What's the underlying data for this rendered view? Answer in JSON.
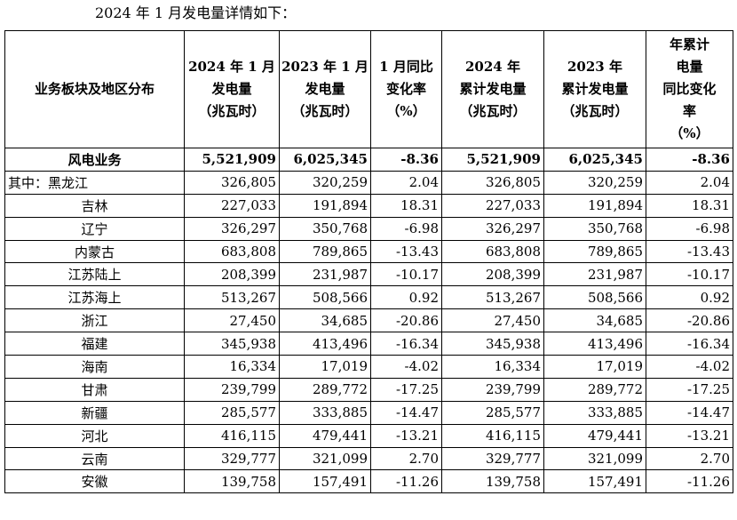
{
  "intro": "2024 年 1 月发电量详情如下：",
  "table": {
    "headers": [
      [
        "业务板块及地区分布"
      ],
      [
        "2024 年 1 月",
        "发电量",
        "（兆瓦时）"
      ],
      [
        "2023 年 1 月",
        "发电量",
        "（兆瓦时）"
      ],
      [
        "1 月同比",
        "变化率",
        "（%）"
      ],
      [
        "2024 年",
        "累计发电量",
        "（兆瓦时）"
      ],
      [
        "2023 年",
        "累计发电量",
        "（兆瓦时）"
      ],
      [
        "年累计",
        "电量",
        "同比变化",
        "率",
        "（%）"
      ]
    ],
    "total": {
      "name": "风电业务",
      "jan2024": "5,521,909",
      "jan2023": "6,025,345",
      "jan_yoy": "-8.36",
      "cum2024": "5,521,909",
      "cum2023": "6,025,345",
      "cum_yoy": "-8.36"
    },
    "rows": [
      {
        "name": "其中：黑龙江",
        "jan2024": "326,805",
        "jan2023": "320,259",
        "jan_yoy": "2.04",
        "cum2024": "326,805",
        "cum2023": "320,259",
        "cum_yoy": "2.04"
      },
      {
        "name": "吉林",
        "jan2024": "227,033",
        "jan2023": "191,894",
        "jan_yoy": "18.31",
        "cum2024": "227,033",
        "cum2023": "191,894",
        "cum_yoy": "18.31"
      },
      {
        "name": "辽宁",
        "jan2024": "326,297",
        "jan2023": "350,768",
        "jan_yoy": "-6.98",
        "cum2024": "326,297",
        "cum2023": "350,768",
        "cum_yoy": "-6.98"
      },
      {
        "name": "内蒙古",
        "jan2024": "683,808",
        "jan2023": "789,865",
        "jan_yoy": "-13.43",
        "cum2024": "683,808",
        "cum2023": "789,865",
        "cum_yoy": "-13.43"
      },
      {
        "name": "江苏陆上",
        "jan2024": "208,399",
        "jan2023": "231,987",
        "jan_yoy": "-10.17",
        "cum2024": "208,399",
        "cum2023": "231,987",
        "cum_yoy": "-10.17"
      },
      {
        "name": "江苏海上",
        "jan2024": "513,267",
        "jan2023": "508,566",
        "jan_yoy": "0.92",
        "cum2024": "513,267",
        "cum2023": "508,566",
        "cum_yoy": "0.92"
      },
      {
        "name": "浙江",
        "jan2024": "27,450",
        "jan2023": "34,685",
        "jan_yoy": "-20.86",
        "cum2024": "27,450",
        "cum2023": "34,685",
        "cum_yoy": "-20.86"
      },
      {
        "name": "福建",
        "jan2024": "345,938",
        "jan2023": "413,496",
        "jan_yoy": "-16.34",
        "cum2024": "345,938",
        "cum2023": "413,496",
        "cum_yoy": "-16.34"
      },
      {
        "name": "海南",
        "jan2024": "16,334",
        "jan2023": "17,019",
        "jan_yoy": "-4.02",
        "cum2024": "16,334",
        "cum2023": "17,019",
        "cum_yoy": "-4.02"
      },
      {
        "name": "甘肃",
        "jan2024": "239,799",
        "jan2023": "289,772",
        "jan_yoy": "-17.25",
        "cum2024": "239,799",
        "cum2023": "289,772",
        "cum_yoy": "-17.25"
      },
      {
        "name": "新疆",
        "jan2024": "285,577",
        "jan2023": "333,885",
        "jan_yoy": "-14.47",
        "cum2024": "285,577",
        "cum2023": "333,885",
        "cum_yoy": "-14.47"
      },
      {
        "name": "河北",
        "jan2024": "416,115",
        "jan2023": "479,441",
        "jan_yoy": "-13.21",
        "cum2024": "416,115",
        "cum2023": "479,441",
        "cum_yoy": "-13.21"
      },
      {
        "name": "云南",
        "jan2024": "329,777",
        "jan2023": "321,099",
        "jan_yoy": "2.70",
        "cum2024": "329,777",
        "cum2023": "321,099",
        "cum_yoy": "2.70"
      },
      {
        "name": "安徽",
        "jan2024": "139,758",
        "jan2023": "157,491",
        "jan_yoy": "-11.26",
        "cum2024": "139,758",
        "cum2023": "157,491",
        "cum_yoy": "-11.26"
      }
    ]
  }
}
